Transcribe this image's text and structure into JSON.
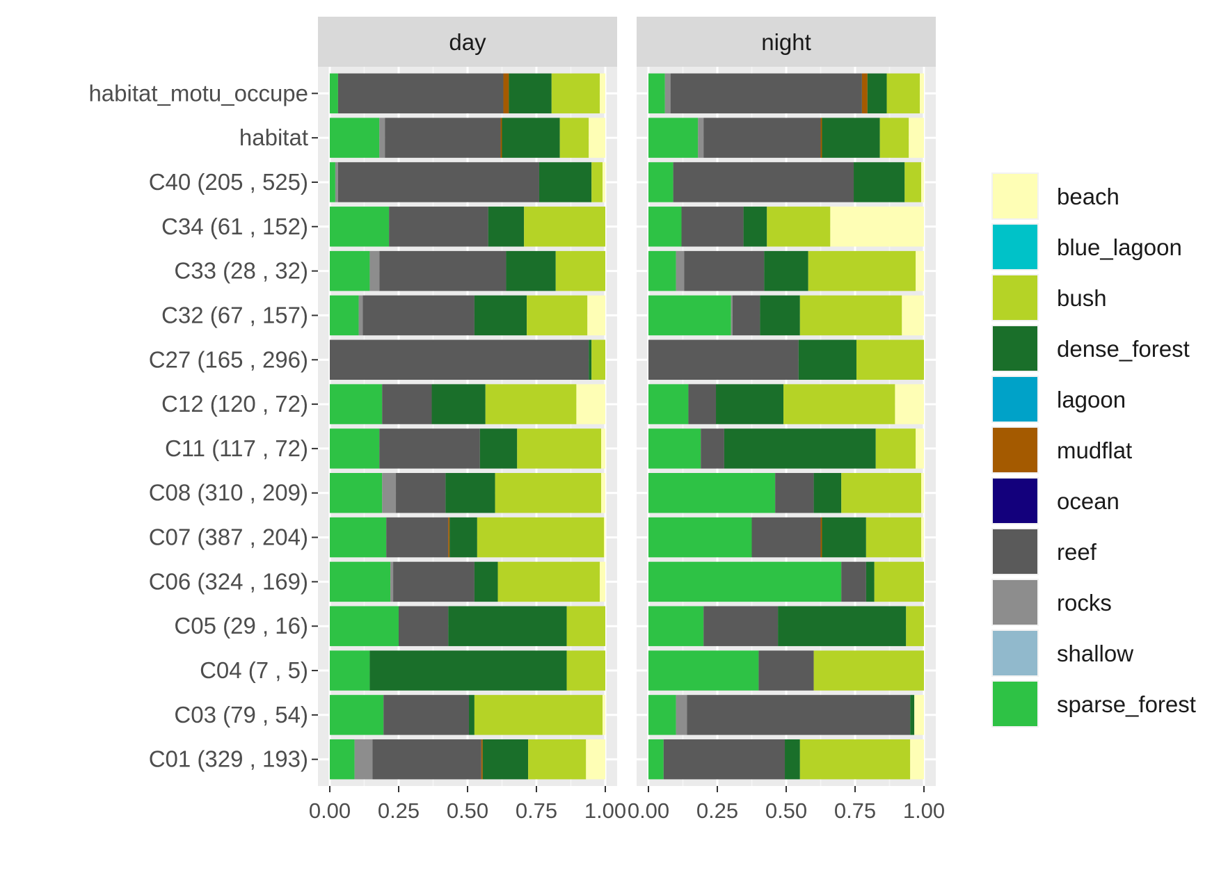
{
  "chart_data": {
    "type": "bar",
    "orientation": "horizontal",
    "stacked": true,
    "facets": [
      "day",
      "night"
    ],
    "categories": [
      "C01 (329 , 193)",
      "C03 (79 , 54)",
      "C04 (7 , 5)",
      "C05 (29 , 16)",
      "C06 (324 , 169)",
      "C07 (387 , 204)",
      "C08 (310 , 209)",
      "C11 (117 , 72)",
      "C12 (120 , 72)",
      "C27 (165 , 296)",
      "C32 (67 , 157)",
      "C33 (28 , 32)",
      "C34 (61 , 152)",
      "C40 (205 , 525)",
      "habitat",
      "habitat_motu_occupe"
    ],
    "xlim": [
      0,
      1
    ],
    "xticks": [
      "0.00",
      "0.25",
      "0.50",
      "0.75",
      "1.00"
    ],
    "grid": true,
    "legend_position": "right",
    "legend": [
      {
        "name": "beach",
        "color": "#FEFEB5"
      },
      {
        "name": "blue_lagoon",
        "color": "#00C2C8"
      },
      {
        "name": "bush",
        "color": "#B5D326"
      },
      {
        "name": "dense_forest",
        "color": "#1A6F2A"
      },
      {
        "name": "lagoon",
        "color": "#00A2C8"
      },
      {
        "name": "mudflat",
        "color": "#A45A00"
      },
      {
        "name": "ocean",
        "color": "#13007C"
      },
      {
        "name": "reef",
        "color": "#5A5A5A"
      },
      {
        "name": "rocks",
        "color": "#8D8D8D"
      },
      {
        "name": "shallow",
        "color": "#91B9CC"
      },
      {
        "name": "sparse_forest",
        "color": "#2EC245"
      }
    ],
    "panels": [
      {
        "facet": "day",
        "rows": [
          {
            "category": "habitat_motu_occupe",
            "segments": {
              "sparse_forest": 0.03,
              "reef": 0.6,
              "mudflat": 0.02,
              "dense_forest": 0.155,
              "bush": 0.175,
              "beach": 0.02
            }
          },
          {
            "category": "habitat",
            "segments": {
              "sparse_forest": 0.18,
              "rocks": 0.02,
              "reef": 0.42,
              "mudflat": 0.005,
              "dense_forest": 0.21,
              "bush": 0.105,
              "beach": 0.06
            }
          },
          {
            "category": "C40 (205 , 525)",
            "segments": {
              "sparse_forest": 0.02,
              "rocks": 0.01,
              "reef": 0.73,
              "dense_forest": 0.19,
              "bush": 0.04,
              "beach": 0.01
            }
          },
          {
            "category": "C34 (61 , 152)",
            "segments": {
              "sparse_forest": 0.215,
              "reef": 0.36,
              "dense_forest": 0.13,
              "bush": 0.295
            }
          },
          {
            "category": "C33 (28 , 32)",
            "segments": {
              "sparse_forest": 0.145,
              "rocks": 0.035,
              "reef": 0.46,
              "dense_forest": 0.18,
              "bush": 0.18
            }
          },
          {
            "category": "C32 (67 , 157)",
            "segments": {
              "sparse_forest": 0.105,
              "rocks": 0.015,
              "reef": 0.405,
              "dense_forest": 0.19,
              "bush": 0.22,
              "beach": 0.065
            }
          },
          {
            "category": "C27 (165 , 296)",
            "segments": {
              "reef": 0.94,
              "dense_forest": 0.01,
              "bush": 0.05
            }
          },
          {
            "category": "C12 (120 , 72)",
            "segments": {
              "sparse_forest": 0.19,
              "reef": 0.18,
              "dense_forest": 0.195,
              "bush": 0.33,
              "beach": 0.105
            }
          },
          {
            "category": "C11 (117 , 72)",
            "segments": {
              "sparse_forest": 0.18,
              "reef": 0.365,
              "dense_forest": 0.135,
              "bush": 0.305,
              "beach": 0.015
            }
          },
          {
            "category": "C08 (310 , 209)",
            "segments": {
              "sparse_forest": 0.19,
              "rocks": 0.05,
              "reef": 0.18,
              "dense_forest": 0.18,
              "bush": 0.385,
              "beach": 0.015
            }
          },
          {
            "category": "C07 (387 , 204)",
            "segments": {
              "sparse_forest": 0.205,
              "reef": 0.225,
              "mudflat": 0.005,
              "dense_forest": 0.1,
              "bush": 0.46,
              "beach": 0.005
            }
          },
          {
            "category": "C06 (324 , 169)",
            "segments": {
              "sparse_forest": 0.22,
              "rocks": 0.01,
              "reef": 0.295,
              "dense_forest": 0.085,
              "bush": 0.37,
              "beach": 0.02
            }
          },
          {
            "category": "C05 (29 , 16)",
            "segments": {
              "sparse_forest": 0.25,
              "reef": 0.18,
              "dense_forest": 0.43,
              "bush": 0.14
            }
          },
          {
            "category": "C04 (7 , 5)",
            "segments": {
              "sparse_forest": 0.145,
              "dense_forest": 0.715,
              "bush": 0.14
            }
          },
          {
            "category": "C03 (79 , 54)",
            "segments": {
              "sparse_forest": 0.195,
              "reef": 0.31,
              "dense_forest": 0.02,
              "bush": 0.465,
              "beach": 0.01
            }
          },
          {
            "category": "C01 (329 , 193)",
            "segments": {
              "sparse_forest": 0.09,
              "rocks": 0.065,
              "reef": 0.395,
              "mudflat": 0.005,
              "dense_forest": 0.165,
              "bush": 0.21,
              "beach": 0.07
            }
          }
        ]
      },
      {
        "facet": "night",
        "rows": [
          {
            "category": "habitat_motu_occupe",
            "segments": {
              "sparse_forest": 0.06,
              "rocks": 0.02,
              "reef": 0.695,
              "mudflat": 0.02,
              "dense_forest": 0.07,
              "bush": 0.12,
              "beach": 0.015
            }
          },
          {
            "category": "habitat",
            "segments": {
              "sparse_forest": 0.18,
              "rocks": 0.02,
              "reef": 0.425,
              "mudflat": 0.005,
              "dense_forest": 0.21,
              "bush": 0.105,
              "beach": 0.055
            }
          },
          {
            "category": "C40 (205 , 525)",
            "segments": {
              "sparse_forest": 0.09,
              "reef": 0.655,
              "dense_forest": 0.185,
              "bush": 0.06,
              "beach": 0.01
            }
          },
          {
            "category": "C34 (61 , 152)",
            "segments": {
              "sparse_forest": 0.12,
              "reef": 0.225,
              "dense_forest": 0.085,
              "bush": 0.23,
              "beach": 0.34
            }
          },
          {
            "category": "C33 (28 , 32)",
            "segments": {
              "sparse_forest": 0.1,
              "rocks": 0.03,
              "reef": 0.29,
              "dense_forest": 0.16,
              "bush": 0.39,
              "beach": 0.03
            }
          },
          {
            "category": "C32 (67 , 157)",
            "segments": {
              "sparse_forest": 0.3,
              "rocks": 0.005,
              "reef": 0.1,
              "dense_forest": 0.145,
              "bush": 0.37,
              "beach": 0.08
            }
          },
          {
            "category": "C27 (165 , 296)",
            "segments": {
              "reef": 0.545,
              "dense_forest": 0.21,
              "bush": 0.245
            }
          },
          {
            "category": "C12 (120 , 72)",
            "segments": {
              "sparse_forest": 0.145,
              "reef": 0.1,
              "dense_forest": 0.245,
              "bush": 0.405,
              "beach": 0.105
            }
          },
          {
            "category": "C11 (117 , 72)",
            "segments": {
              "sparse_forest": 0.19,
              "reef": 0.085,
              "dense_forest": 0.55,
              "bush": 0.145,
              "beach": 0.03
            }
          },
          {
            "category": "C08 (310 , 209)",
            "segments": {
              "sparse_forest": 0.46,
              "reef": 0.14,
              "dense_forest": 0.1,
              "bush": 0.29,
              "beach": 0.01
            }
          },
          {
            "category": "C07 (387 , 204)",
            "segments": {
              "sparse_forest": 0.375,
              "reef": 0.25,
              "mudflat": 0.005,
              "dense_forest": 0.16,
              "bush": 0.2,
              "beach": 0.01
            }
          },
          {
            "category": "C06 (324 , 169)",
            "segments": {
              "sparse_forest": 0.7,
              "reef": 0.09,
              "dense_forest": 0.03,
              "bush": 0.18
            }
          },
          {
            "category": "C05 (29 , 16)",
            "segments": {
              "sparse_forest": 0.2,
              "reef": 0.27,
              "dense_forest": 0.465,
              "bush": 0.065
            }
          },
          {
            "category": "C04 (7 , 5)",
            "segments": {
              "sparse_forest": 0.4,
              "reef": 0.2,
              "bush": 0.4
            }
          },
          {
            "category": "C03 (79 , 54)",
            "segments": {
              "sparse_forest": 0.1,
              "rocks": 0.04,
              "reef": 0.81,
              "dense_forest": 0.015,
              "beach": 0.035
            }
          },
          {
            "category": "C01 (329 , 193)",
            "segments": {
              "sparse_forest": 0.055,
              "reef": 0.44,
              "dense_forest": 0.055,
              "bush": 0.4,
              "beach": 0.05
            }
          }
        ]
      }
    ]
  }
}
